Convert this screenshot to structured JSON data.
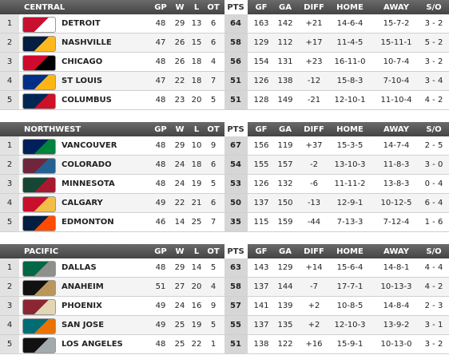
{
  "divisions": [
    {
      "name": "CENTRAL",
      "columns": [
        "GP",
        "W",
        "L",
        "OT",
        "PTS",
        "GF",
        "GA",
        "DIFF",
        "HOME",
        "AWAY",
        "S/O"
      ],
      "rows": [
        [
          1,
          "DETROIT",
          48,
          29,
          13,
          6,
          64,
          163,
          142,
          "+21",
          "14-6-4",
          "15-7-2",
          "3 - 2"
        ],
        [
          2,
          "NASHVILLE",
          47,
          26,
          15,
          6,
          58,
          129,
          112,
          "+17",
          "11-4-5",
          "15-11-1",
          "5 - 2"
        ],
        [
          3,
          "CHICAGO",
          48,
          26,
          18,
          4,
          56,
          154,
          131,
          "+23",
          "16-11-0",
          "10-7-4",
          "3 - 2"
        ],
        [
          4,
          "ST LOUIS",
          47,
          22,
          18,
          7,
          51,
          126,
          138,
          "-12",
          "15-8-3",
          "7-10-4",
          "3 - 4"
        ],
        [
          5,
          "COLUMBUS",
          48,
          23,
          20,
          5,
          51,
          128,
          149,
          "-21",
          "12-10-1",
          "11-10-4",
          "4 - 2"
        ]
      ]
    },
    {
      "name": "NORTHWEST",
      "columns": [
        "GP",
        "W",
        "L",
        "OT",
        "PTS",
        "GF",
        "GA",
        "DIFF",
        "HOME",
        "AWAY",
        "S/O"
      ],
      "rows": [
        [
          1,
          "VANCOUVER",
          48,
          29,
          10,
          9,
          67,
          156,
          119,
          "+37",
          "15-3-5",
          "14-7-4",
          "2 - 5"
        ],
        [
          2,
          "COLORADO",
          48,
          24,
          18,
          6,
          54,
          155,
          157,
          "-2",
          "13-10-3",
          "11-8-3",
          "3 - 0"
        ],
        [
          3,
          "MINNESOTA",
          48,
          24,
          19,
          5,
          53,
          126,
          132,
          "-6",
          "11-11-2",
          "13-8-3",
          "0 - 4"
        ],
        [
          4,
          "CALGARY",
          49,
          22,
          21,
          6,
          50,
          137,
          150,
          "-13",
          "12-9-1",
          "10-12-5",
          "6 - 4"
        ],
        [
          5,
          "EDMONTON",
          46,
          14,
          25,
          7,
          35,
          115,
          159,
          "-44",
          "7-13-3",
          "7-12-4",
          "1 - 6"
        ]
      ]
    },
    {
      "name": "PACIFIC",
      "columns": [
        "GP",
        "W",
        "L",
        "OT",
        "PTS",
        "GF",
        "GA",
        "DIFF",
        "HOME",
        "AWAY",
        "S/O"
      ],
      "rows": [
        [
          1,
          "DALLAS",
          48,
          29,
          14,
          5,
          63,
          143,
          129,
          "+14",
          "15-6-4",
          "14-8-1",
          "4 - 4"
        ],
        [
          2,
          "ANAHEIM",
          51,
          27,
          20,
          4,
          58,
          137,
          144,
          "-7",
          "17-7-1",
          "10-13-3",
          "4 - 2"
        ],
        [
          3,
          "PHOENIX",
          49,
          24,
          16,
          9,
          57,
          141,
          139,
          "+2",
          "10-8-5",
          "14-8-4",
          "2 - 3"
        ],
        [
          4,
          "SAN JOSE",
          49,
          25,
          19,
          5,
          55,
          137,
          135,
          "+2",
          "12-10-3",
          "13-9-2",
          "3 - 1"
        ],
        [
          5,
          "LOS ANGELES",
          48,
          25,
          22,
          1,
          51,
          138,
          122,
          "+16",
          "15-9-1",
          "10-13-0",
          "3 - 2"
        ]
      ]
    }
  ]
}
